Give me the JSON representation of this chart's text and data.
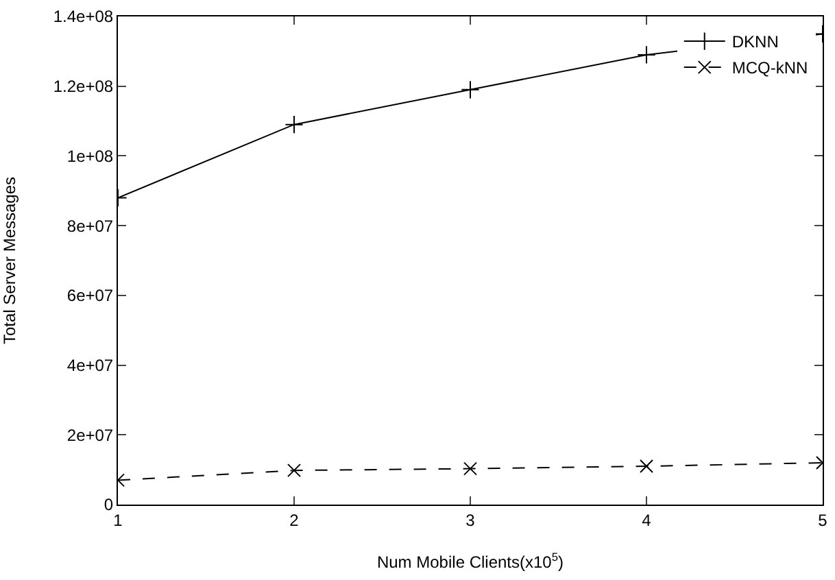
{
  "chart_data": {
    "type": "line",
    "xlabel": "Num Mobile Clients(x10$^{5}$)",
    "ylabel": "Total Server Messages",
    "x": [
      1,
      2,
      3,
      4,
      5
    ],
    "series": [
      {
        "name": "DKNN",
        "color": "#000000",
        "values": [
          88000000,
          109000000,
          119000000,
          129000000,
          135000000
        ],
        "marker": "cross",
        "line_style": "solid"
      },
      {
        "name": "MCQ-kNN",
        "color": "#000000",
        "values": [
          7000000,
          9800000,
          10300000,
          11000000,
          12000000
        ],
        "marker": "x",
        "line_style": "dashed"
      }
    ],
    "xlim": [
      1,
      5
    ],
    "xticks": [
      1,
      2,
      3,
      4,
      5
    ],
    "ylim": [
      0,
      140000000
    ],
    "yticks": [
      0,
      {
        "value": 20000000,
        "label": "2e+07"
      },
      {
        "value": 40000000,
        "label": "4e+07"
      },
      {
        "value": 60000000,
        "label": "6e+07"
      },
      {
        "value": 80000000,
        "label": "8e+07"
      },
      {
        "value": 100000000,
        "label": "1e+08"
      },
      {
        "value": 120000000,
        "label": "1.2e+08"
      },
      {
        "value": 140000000,
        "label": "1.4e+08"
      }
    ],
    "grid": false,
    "legend": "top right"
  }
}
